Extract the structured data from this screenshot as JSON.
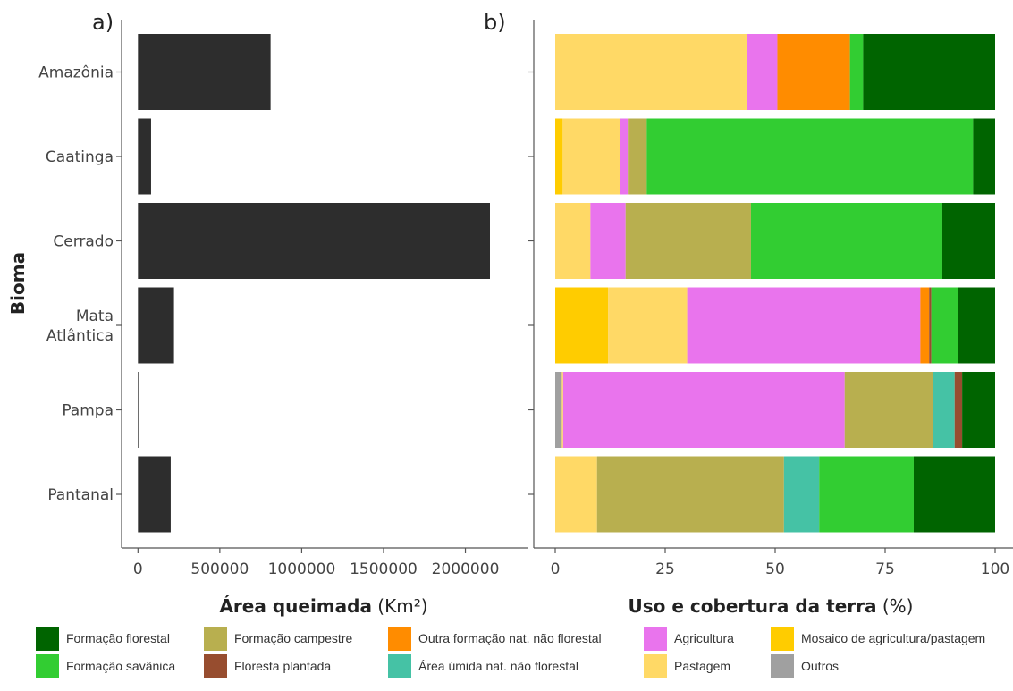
{
  "chart_data": [
    {
      "type": "bar",
      "orientation": "horizontal",
      "panel_label": "a)",
      "categories": [
        "Amazônia",
        "Caatinga",
        "Cerrado",
        "Mata\nAtlântica",
        "Pampa",
        "Pantanal"
      ],
      "values": [
        810000,
        80000,
        2150000,
        220000,
        5000,
        200000
      ],
      "color": "#2d2d2d",
      "xlabel": "Área queimada",
      "xlabel_unit": "(Km²)",
      "ylabel": "Bioma",
      "xlim": [
        -100000,
        2150000
      ],
      "xticks": [
        0,
        500000,
        1000000,
        1500000,
        2000000
      ],
      "xtick_labels": [
        "0",
        "500000",
        "1000000",
        "1500000",
        "2000000"
      ],
      "grid": false
    },
    {
      "type": "bar",
      "orientation": "horizontal",
      "stacked": true,
      "panel_label": "b)",
      "categories": [
        "Amazônia",
        "Caatinga",
        "Cerrado",
        "Mata\nAtlântica",
        "Pampa",
        "Pantanal"
      ],
      "xlabel": "Uso e cobertura da terra",
      "xlabel_unit": "(%)",
      "xlim": [
        0,
        100
      ],
      "xticks": [
        0,
        25,
        50,
        75,
        100
      ],
      "xtick_labels": [
        "0",
        "25",
        "50",
        "75",
        "100"
      ],
      "grid": false,
      "legend_position": "bottom",
      "series": [
        {
          "name": "Outros",
          "color": "#a0a0a0",
          "values": [
            0,
            0,
            0,
            0,
            1.5,
            0
          ]
        },
        {
          "name": "Mosaico de agricultura/pastagem",
          "color": "#ffcc00",
          "values": [
            0,
            1.7,
            0,
            12.0,
            0,
            0
          ]
        },
        {
          "name": "Pastagem",
          "color": "#ffd966",
          "values": [
            43.5,
            13.0,
            8.0,
            18.0,
            0.3,
            9.5
          ]
        },
        {
          "name": "Agricultura",
          "color": "#e974ed",
          "values": [
            7.0,
            1.8,
            8.0,
            53.0,
            64.0,
            0
          ]
        },
        {
          "name": "Formação campestre",
          "color": "#b8af4f",
          "values": [
            0,
            4.3,
            28.5,
            0,
            20.0,
            42.5
          ]
        },
        {
          "name": "Outra formação nat. não florestal",
          "color": "#ff8c00",
          "values": [
            16.5,
            0,
            0,
            2.0,
            0,
            0
          ]
        },
        {
          "name": "Área úmida nat. não florestal",
          "color": "#45c2a5",
          "values": [
            0,
            0,
            0,
            0,
            5.0,
            8.0
          ]
        },
        {
          "name": "Floresta plantada",
          "color": "#974d2f",
          "values": [
            0,
            0,
            0,
            0.5,
            1.7,
            0
          ]
        },
        {
          "name": "Formação savânica",
          "color": "#32cd32",
          "values": [
            3.0,
            74.2,
            43.5,
            6.0,
            0,
            21.5
          ]
        },
        {
          "name": "Formação florestal",
          "color": "#006400",
          "values": [
            30.0,
            5.0,
            12.0,
            8.5,
            7.5,
            18.5
          ]
        }
      ]
    }
  ],
  "legend": {
    "items": [
      {
        "label": "Formação florestal",
        "color": "#006400"
      },
      {
        "label": "Formação campestre",
        "color": "#b8af4f"
      },
      {
        "label": "Outra formação nat. não florestal",
        "color": "#ff8c00"
      },
      {
        "label": "Agricultura",
        "color": "#e974ed"
      },
      {
        "label": "Mosaico de agricultura/pastagem",
        "color": "#ffcc00"
      },
      {
        "label": "Formação savânica",
        "color": "#32cd32"
      },
      {
        "label": "Floresta plantada",
        "color": "#974d2f"
      },
      {
        "label": "Área úmida nat. não florestal",
        "color": "#45c2a5"
      },
      {
        "label": "Pastagem",
        "color": "#ffd966"
      },
      {
        "label": "Outros",
        "color": "#a0a0a0"
      }
    ]
  }
}
